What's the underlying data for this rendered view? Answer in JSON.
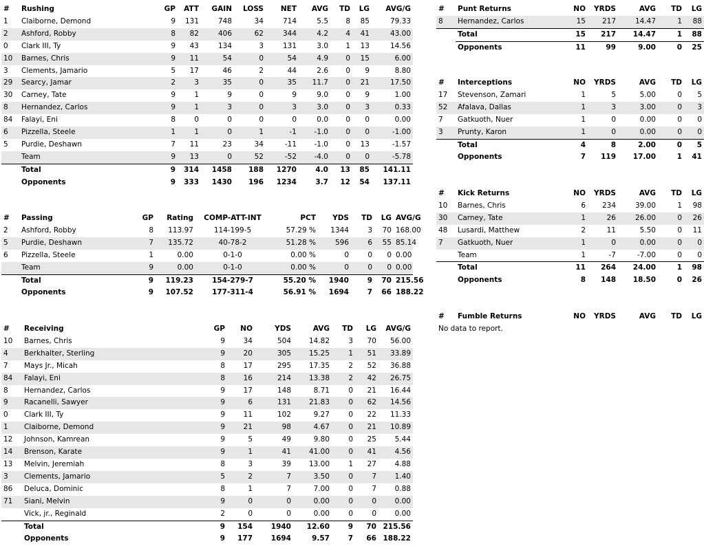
{
  "rushing": {
    "headers": [
      "#",
      "Rushing",
      "GP",
      "ATT",
      "GAIN",
      "LOSS",
      "NET",
      "AVG",
      "TD",
      "LG",
      "AVG/G"
    ],
    "rows": [
      [
        "1",
        "Claiborne, Demond",
        "9",
        "131",
        "748",
        "34",
        "714",
        "5.5",
        "8",
        "85",
        "79.33"
      ],
      [
        "2",
        "Ashford, Robby",
        "8",
        "82",
        "406",
        "62",
        "344",
        "4.2",
        "4",
        "41",
        "43.00"
      ],
      [
        "0",
        "Clark III, Ty",
        "9",
        "43",
        "134",
        "3",
        "131",
        "3.0",
        "1",
        "13",
        "14.56"
      ],
      [
        "10",
        "Barnes, Chris",
        "9",
        "11",
        "54",
        "0",
        "54",
        "4.9",
        "0",
        "15",
        "6.00"
      ],
      [
        "3",
        "Clements, Jamario",
        "5",
        "17",
        "46",
        "2",
        "44",
        "2.6",
        "0",
        "9",
        "8.80"
      ],
      [
        "29",
        "Searcy, Jamar",
        "2",
        "3",
        "35",
        "0",
        "35",
        "11.7",
        "0",
        "21",
        "17.50"
      ],
      [
        "30",
        "Carney, Tate",
        "9",
        "1",
        "9",
        "0",
        "9",
        "9.0",
        "0",
        "9",
        "1.00"
      ],
      [
        "8",
        "Hernandez, Carlos",
        "9",
        "1",
        "3",
        "0",
        "3",
        "3.0",
        "0",
        "3",
        "0.33"
      ],
      [
        "84",
        "Falayi, Eni",
        "8",
        "0",
        "0",
        "0",
        "0",
        "0.0",
        "0",
        "0",
        "0.00"
      ],
      [
        "6",
        "Pizzella, Steele",
        "1",
        "1",
        "0",
        "1",
        "-1",
        "-1.0",
        "0",
        "0",
        "-1.00"
      ],
      [
        "5",
        "Purdie, Deshawn",
        "7",
        "11",
        "23",
        "34",
        "-11",
        "-1.0",
        "0",
        "13",
        "-1.57"
      ],
      [
        "",
        "Team",
        "9",
        "13",
        "0",
        "52",
        "-52",
        "-4.0",
        "0",
        "0",
        "-5.78"
      ]
    ],
    "total": [
      "",
      "Total",
      "9",
      "314",
      "1458",
      "188",
      "1270",
      "4.0",
      "13",
      "85",
      "141.11"
    ],
    "opponents": [
      "",
      "Opponents",
      "9",
      "333",
      "1430",
      "196",
      "1234",
      "3.7",
      "12",
      "54",
      "137.11"
    ]
  },
  "passing": {
    "headers": [
      "#",
      "Passing",
      "GP",
      "Rating",
      "COMP-ATT-INT",
      "PCT",
      "YDS",
      "TD",
      "LG",
      "AVG/G"
    ],
    "rows": [
      [
        "2",
        "Ashford, Robby",
        "8",
        "113.97",
        "114-199-5",
        "57.29 %",
        "1344",
        "3",
        "70",
        "168.00"
      ],
      [
        "5",
        "Purdie, Deshawn",
        "7",
        "135.72",
        "40-78-2",
        "51.28 %",
        "596",
        "6",
        "55",
        "85.14"
      ],
      [
        "6",
        "Pizzella, Steele",
        "1",
        "0.00",
        "0-1-0",
        "0.00 %",
        "0",
        "0",
        "0",
        "0.00"
      ],
      [
        "",
        "Team",
        "9",
        "0.00",
        "0-1-0",
        "0.00 %",
        "0",
        "0",
        "0",
        "0.00"
      ]
    ],
    "total": [
      "",
      "Total",
      "9",
      "119.23",
      "154-279-7",
      "55.20 %",
      "1940",
      "9",
      "70",
      "215.56"
    ],
    "opponents": [
      "",
      "Opponents",
      "9",
      "107.52",
      "177-311-4",
      "56.91 %",
      "1694",
      "7",
      "66",
      "188.22"
    ]
  },
  "receiving": {
    "headers": [
      "#",
      "Receiving",
      "GP",
      "NO",
      "YDS",
      "AVG",
      "TD",
      "LG",
      "AVG/G"
    ],
    "rows": [
      [
        "10",
        "Barnes, Chris",
        "9",
        "34",
        "504",
        "14.82",
        "3",
        "70",
        "56.00"
      ],
      [
        "4",
        "Berkhalter, Sterling",
        "9",
        "20",
        "305",
        "15.25",
        "1",
        "51",
        "33.89"
      ],
      [
        "7",
        "Mays Jr., Micah",
        "8",
        "17",
        "295",
        "17.35",
        "2",
        "52",
        "36.88"
      ],
      [
        "84",
        "Falayi, Eni",
        "8",
        "16",
        "214",
        "13.38",
        "2",
        "42",
        "26.75"
      ],
      [
        "8",
        "Hernandez, Carlos",
        "9",
        "17",
        "148",
        "8.71",
        "0",
        "21",
        "16.44"
      ],
      [
        "9",
        "Racanelli, Sawyer",
        "9",
        "6",
        "131",
        "21.83",
        "0",
        "62",
        "14.56"
      ],
      [
        "0",
        "Clark III, Ty",
        "9",
        "11",
        "102",
        "9.27",
        "0",
        "22",
        "11.33"
      ],
      [
        "1",
        "Claiborne, Demond",
        "9",
        "21",
        "98",
        "4.67",
        "0",
        "21",
        "10.89"
      ],
      [
        "12",
        "Johnson, Kamrean",
        "9",
        "5",
        "49",
        "9.80",
        "0",
        "25",
        "5.44"
      ],
      [
        "14",
        "Brenson, Karate",
        "9",
        "1",
        "41",
        "41.00",
        "0",
        "41",
        "4.56"
      ],
      [
        "13",
        "Melvin, Jeremiah",
        "8",
        "3",
        "39",
        "13.00",
        "1",
        "27",
        "4.88"
      ],
      [
        "3",
        "Clements, Jamario",
        "5",
        "2",
        "7",
        "3.50",
        "0",
        "7",
        "1.40"
      ],
      [
        "86",
        "Deluca, Dominic",
        "8",
        "1",
        "7",
        "7.00",
        "0",
        "7",
        "0.88"
      ],
      [
        "71",
        "Siani, Melvin",
        "9",
        "0",
        "0",
        "0.00",
        "0",
        "0",
        "0.00"
      ],
      [
        "",
        "Vick,  jr., Reginald",
        "2",
        "0",
        "0",
        "0.00",
        "0",
        "0",
        "0.00"
      ]
    ],
    "total": [
      "",
      "Total",
      "9",
      "154",
      "1940",
      "12.60",
      "9",
      "70",
      "215.56"
    ],
    "opponents": [
      "",
      "Opponents",
      "9",
      "177",
      "1694",
      "9.57",
      "7",
      "66",
      "188.22"
    ]
  },
  "punt_returns": {
    "headers": [
      "#",
      "Punt Returns",
      "NO",
      "YRDS",
      "AVG",
      "TD",
      "LG"
    ],
    "rows": [
      [
        "8",
        "Hernandez, Carlos",
        "15",
        "217",
        "14.47",
        "1",
        "88"
      ]
    ],
    "total": [
      "",
      "Total",
      "15",
      "217",
      "14.47",
      "1",
      "88"
    ],
    "opponents": [
      "",
      "Opponents",
      "11",
      "99",
      "9.00",
      "0",
      "25"
    ]
  },
  "interceptions": {
    "headers": [
      "#",
      "Interceptions",
      "NO",
      "YRDS",
      "AVG",
      "TD",
      "LG"
    ],
    "rows": [
      [
        "17",
        "Stevenson, Zamari",
        "1",
        "5",
        "5.00",
        "0",
        "5"
      ],
      [
        "52",
        "Afalava, Dallas",
        "1",
        "3",
        "3.00",
        "0",
        "3"
      ],
      [
        "7",
        "Gatkuoth, Nuer",
        "1",
        "0",
        "0.00",
        "0",
        "0"
      ],
      [
        "3",
        "Prunty, Karon",
        "1",
        "0",
        "0.00",
        "0",
        "0"
      ]
    ],
    "total": [
      "",
      "Total",
      "4",
      "8",
      "2.00",
      "0",
      "5"
    ],
    "opponents": [
      "",
      "Opponents",
      "7",
      "119",
      "17.00",
      "1",
      "41"
    ]
  },
  "kick_returns": {
    "headers": [
      "#",
      "Kick Returns",
      "NO",
      "YRDS",
      "AVG",
      "TD",
      "LG"
    ],
    "rows": [
      [
        "10",
        "Barnes, Chris",
        "6",
        "234",
        "39.00",
        "1",
        "98"
      ],
      [
        "30",
        "Carney, Tate",
        "1",
        "26",
        "26.00",
        "0",
        "26"
      ],
      [
        "48",
        "Lusardi, Matthew",
        "2",
        "11",
        "5.50",
        "0",
        "11"
      ],
      [
        "7",
        "Gatkuoth, Nuer",
        "1",
        "0",
        "0.00",
        "0",
        "0"
      ],
      [
        "",
        "Team",
        "1",
        "-7",
        "-7.00",
        "0",
        "0"
      ]
    ],
    "total": [
      "",
      "Total",
      "11",
      "264",
      "24.00",
      "1",
      "98"
    ],
    "opponents": [
      "",
      "Opponents",
      "8",
      "148",
      "18.50",
      "0",
      "26"
    ]
  },
  "fumble_returns": {
    "headers": [
      "#",
      "Fumble Returns",
      "NO",
      "YRDS",
      "AVG",
      "TD",
      "LG"
    ],
    "no_data": "No data to report."
  }
}
